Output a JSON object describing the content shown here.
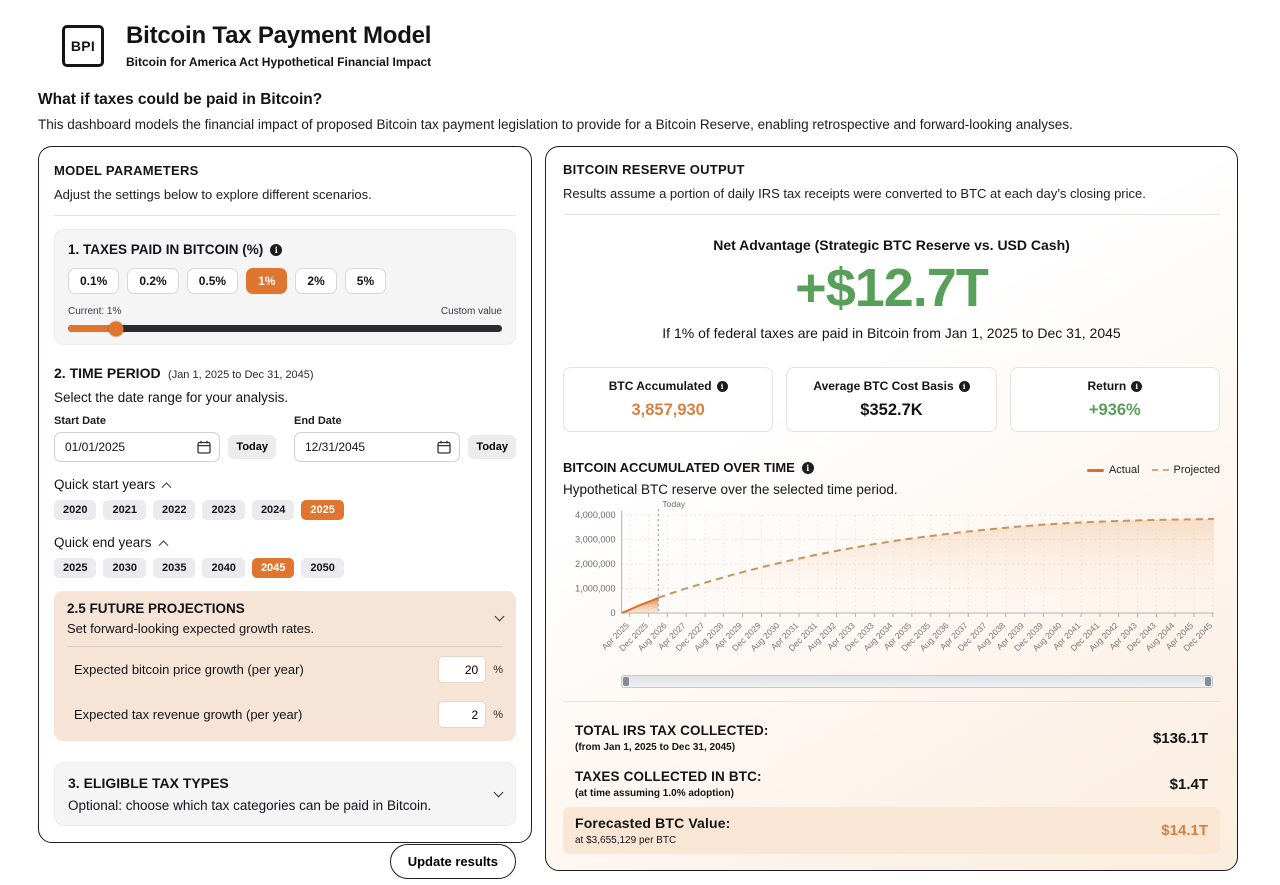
{
  "icons": {
    "info": "i"
  },
  "header": {
    "logo": "BPI",
    "title": "Bitcoin Tax Payment Model",
    "subtitle": "Bitcoin for America Act Hypothetical Financial Impact"
  },
  "intro": {
    "heading": "What if taxes could be paid in Bitcoin?",
    "description": "This dashboard models the financial impact of proposed Bitcoin tax payment legislation to provide for a Bitcoin Reserve, enabling retrospective and forward-looking analyses."
  },
  "parameters": {
    "title": "MODEL PARAMETERS",
    "subtitle": "Adjust the settings below to explore different scenarios.",
    "tax_percent": {
      "title": "1. TAXES PAID IN BITCOIN (%)",
      "options": [
        "0.1%",
        "0.2%",
        "0.5%",
        "1%",
        "2%",
        "5%"
      ],
      "selected": "1%",
      "current_label": "Current: 1%",
      "custom_label": "Custom value",
      "slider_position_pct": 11
    },
    "time_period": {
      "title": "2. TIME PERIOD",
      "range_note": "(Jan 1, 2025 to Dec 31, 2045)",
      "subtitle": "Select the date range for your analysis.",
      "start_label": "Start Date",
      "end_label": "End Date",
      "start_value": "01/01/2025",
      "end_value": "12/31/2045",
      "today_label": "Today",
      "quick_start_label": "Quick start years",
      "quick_start_years": [
        "2020",
        "2021",
        "2022",
        "2023",
        "2024",
        "2025"
      ],
      "quick_start_selected": "2025",
      "quick_end_label": "Quick end years",
      "quick_end_years": [
        "2025",
        "2030",
        "2035",
        "2040",
        "2045",
        "2050"
      ],
      "quick_end_selected": "2045"
    },
    "projections": {
      "title": "2.5 FUTURE PROJECTIONS",
      "subtitle": "Set forward-looking expected growth rates.",
      "rows": [
        {
          "label": "Expected bitcoin price growth (per year)",
          "value": "20",
          "suffix": "%"
        },
        {
          "label": "Expected tax revenue growth (per year)",
          "value": "2",
          "suffix": "%"
        }
      ]
    },
    "tax_types": {
      "title": "3. ELIGIBLE TAX TYPES",
      "subtitle": "Optional: choose which tax categories can be paid in Bitcoin."
    },
    "update_button": "Update results"
  },
  "output": {
    "title": "BITCOIN RESERVE OUTPUT",
    "subtitle": "Results assume a portion of daily IRS tax receipts were converted to BTC at each day’s closing price.",
    "net_advantage": {
      "label": "Net Advantage (Strategic BTC Reserve vs. USD Cash)",
      "value": "+$12.7T",
      "note": "If 1% of federal taxes are paid in Bitcoin from Jan 1, 2025 to Dec 31, 2045"
    },
    "stats": [
      {
        "label": "BTC Accumulated",
        "value": "3,857,930",
        "color": "#d87f3f"
      },
      {
        "label": "Average BTC Cost Basis",
        "value": "$352.7K",
        "color": "#141418"
      },
      {
        "label": "Return",
        "value": "+936%",
        "color": "#58a05a"
      }
    ],
    "summary": [
      {
        "label": "TOTAL IRS TAX COLLECTED:",
        "note": "(from Jan 1, 2025 to Dec 31, 2045)",
        "value": "$136.1T",
        "highlight": false
      },
      {
        "label": "TAXES COLLECTED IN BTC:",
        "note": "(at time assuming 1.0% adoption)",
        "value": "$1.4T",
        "highlight": false
      },
      {
        "label": "Forecasted BTC Value:",
        "note": "at $3,655,129 per BTC",
        "value": "$14.1T",
        "highlight": true
      }
    ]
  },
  "chart_data": {
    "type": "area",
    "title": "BITCOIN ACCUMULATED OVER TIME",
    "subtitle": "Hypothetical BTC reserve over the selected time period.",
    "legend": [
      {
        "label": "Actual",
        "style": "solid"
      },
      {
        "label": "Projected",
        "style": "dashed"
      }
    ],
    "ylim": [
      0,
      4000000
    ],
    "y_ticks": [
      "0",
      "1,000,000",
      "2,000,000",
      "3,000,000",
      "4,000,000"
    ],
    "x_range_years": [
      2025.0,
      2046.0
    ],
    "x_tick_labels": [
      "Apr 2025",
      "Dec 2025",
      "Aug 2026",
      "Apr 2027",
      "Dec 2027",
      "Aug 2028",
      "Apr 2029",
      "Dec 2029",
      "Aug 2030",
      "Apr 2031",
      "Dec 2031",
      "Aug 2032",
      "Apr 2033",
      "Dec 2033",
      "Aug 2034",
      "Apr 2035",
      "Dec 2035",
      "Aug 2036",
      "Apr 2037",
      "Dec 2037",
      "Aug 2038",
      "Apr 2039",
      "Dec 2039",
      "Aug 2040",
      "Apr 2041",
      "Dec 2041",
      "Aug 2042",
      "Apr 2043",
      "Dec 2043",
      "Aug 2044",
      "Apr 2045",
      "Dec 2045"
    ],
    "today": {
      "x": 2026.3,
      "label": "Today"
    },
    "series": [
      {
        "name": "Actual",
        "style": "solid",
        "x": [
          2025.0,
          2025.3,
          2025.6,
          2025.9,
          2026.1,
          2026.3
        ],
        "values": [
          0,
          140000,
          300000,
          430000,
          520000,
          620000
        ]
      },
      {
        "name": "Projected",
        "style": "dashed",
        "x": [
          2026.3,
          2027,
          2028,
          2029,
          2030,
          2031,
          2032,
          2033,
          2034,
          2035,
          2036,
          2037,
          2038,
          2039,
          2040,
          2041,
          2042,
          2043,
          2044,
          2045,
          2046
        ],
        "values": [
          620000,
          900000,
          1250000,
          1580000,
          1880000,
          2150000,
          2400000,
          2620000,
          2820000,
          3000000,
          3150000,
          3290000,
          3410000,
          3520000,
          3610000,
          3680000,
          3730000,
          3770000,
          3800000,
          3820000,
          3840000
        ]
      }
    ]
  }
}
